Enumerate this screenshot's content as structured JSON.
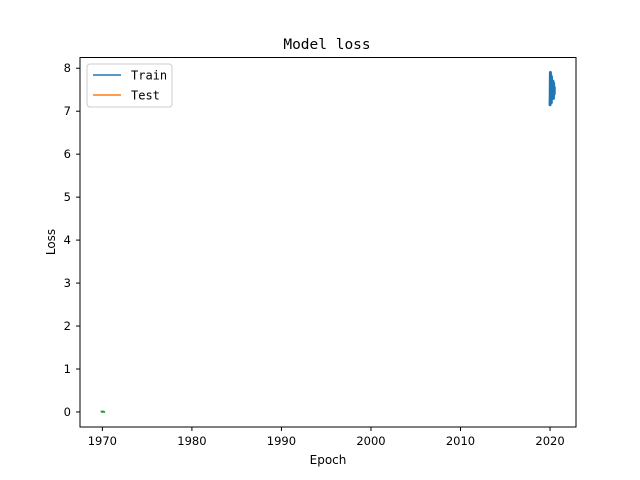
{
  "chart_data": {
    "type": "line",
    "title": "Model loss",
    "xlabel": "Epoch",
    "ylabel": "Loss",
    "xlim": [
      1967.5,
      2022.9
    ],
    "ylim": [
      -0.35,
      8.25
    ],
    "xticks": [
      1970,
      1980,
      1990,
      2000,
      2010,
      2020
    ],
    "yticks": [
      0,
      1,
      2,
      3,
      4,
      5,
      6,
      7,
      8
    ],
    "grid": false,
    "legend_position": "upper-left",
    "colors": {
      "train": "#1f77b4",
      "test": "#ff7f0e",
      "extra": "#2ca02c"
    },
    "series": [
      {
        "name": "Train",
        "color": "#1f77b4",
        "x": [
          2020.0,
          2020.02,
          2020.04,
          2020.06,
          2020.08,
          2020.1,
          2020.12,
          2020.14,
          2020.16,
          2020.18,
          2020.2,
          2020.22,
          2020.24,
          2020.26,
          2020.28,
          2020.3,
          2020.32,
          2020.34,
          2020.36,
          2020.38,
          2020.4,
          2020.42,
          2020.44,
          2020.46,
          2020.48
        ],
        "values": [
          7.15,
          7.35,
          7.9,
          7.25,
          7.85,
          7.3,
          7.75,
          7.2,
          7.8,
          7.4,
          7.7,
          7.3,
          7.65,
          7.45,
          7.6,
          7.35,
          7.7,
          7.4,
          7.55,
          7.3,
          7.65,
          7.45,
          7.5,
          7.4,
          7.55
        ]
      },
      {
        "name": "Test",
        "color": "#ff7f0e",
        "x": [],
        "values": []
      },
      {
        "color": "#2ca02c",
        "x": [
          1969.9,
          1970.0,
          1970.1,
          1970.2
        ],
        "values": [
          0.01,
          0.0,
          0.01,
          0.0
        ]
      }
    ]
  }
}
